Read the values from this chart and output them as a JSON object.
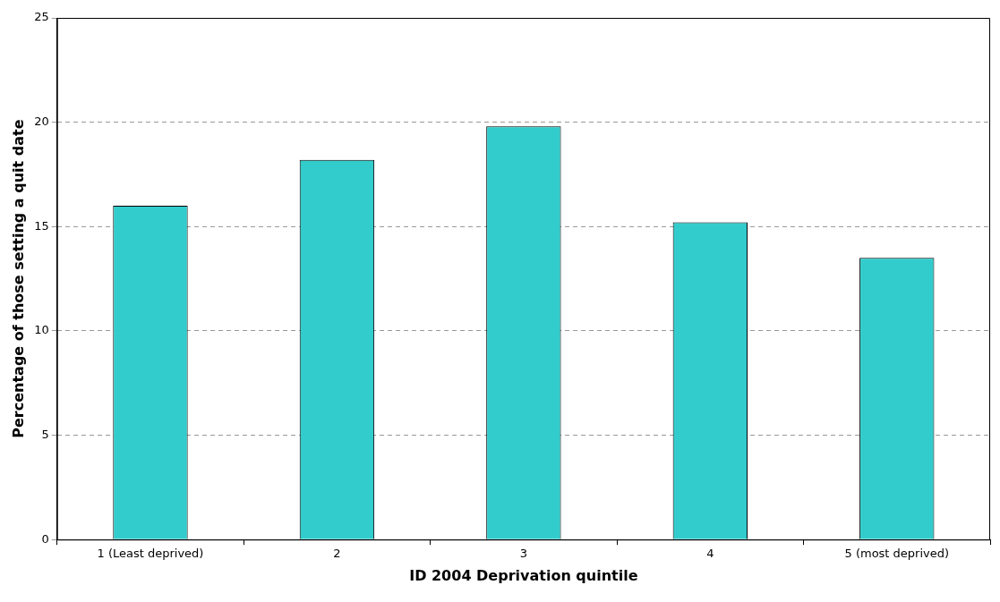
{
  "chart_data": {
    "type": "bar",
    "xlabel": "ID 2004 Deprivation quintile",
    "ylabel": "Percentage of those setting a quit date",
    "categories": [
      "1 (Least deprived)",
      "2",
      "3",
      "4",
      "5 (most deprived)"
    ],
    "values": [
      16.0,
      18.2,
      19.8,
      15.2,
      13.5
    ],
    "color": "#33cccc",
    "ylim": [
      0,
      25
    ],
    "yticks": [
      0,
      5,
      10,
      15,
      20,
      25
    ],
    "grid": "y",
    "legend": false
  }
}
